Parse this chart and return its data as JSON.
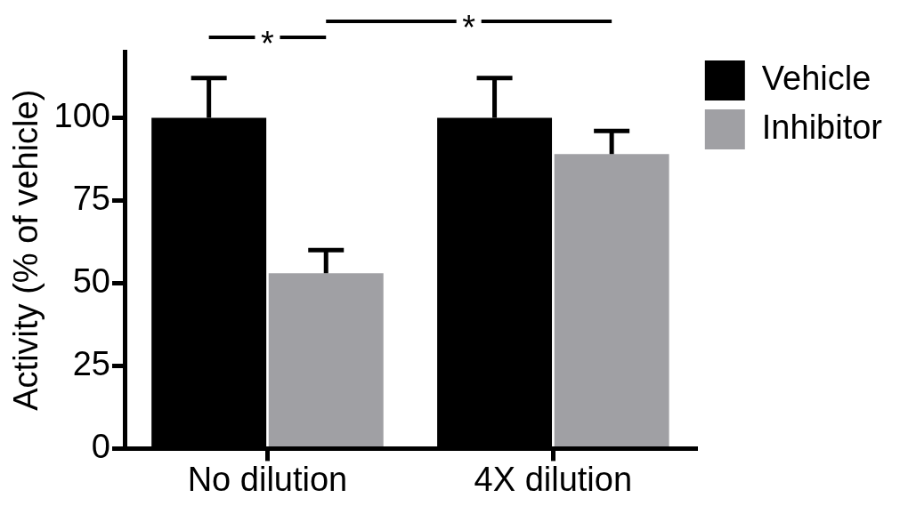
{
  "chart_data": {
    "type": "bar",
    "ylabel": "Activity (% of vehicle)",
    "categories": [
      "No dilution",
      "4X dilution"
    ],
    "series": [
      {
        "name": "Vehicle",
        "color": "#000000",
        "values": [
          100,
          100
        ],
        "errors": [
          12,
          12
        ]
      },
      {
        "name": "Inhibitor",
        "color": "#a0a0a4",
        "values": [
          53,
          89
        ],
        "errors": [
          7,
          7
        ]
      }
    ],
    "ylim": [
      0,
      120
    ],
    "yticks": [
      0,
      25,
      50,
      75,
      100
    ],
    "grid": false,
    "legend": "top right",
    "annotations": [
      "*",
      "*"
    ]
  }
}
